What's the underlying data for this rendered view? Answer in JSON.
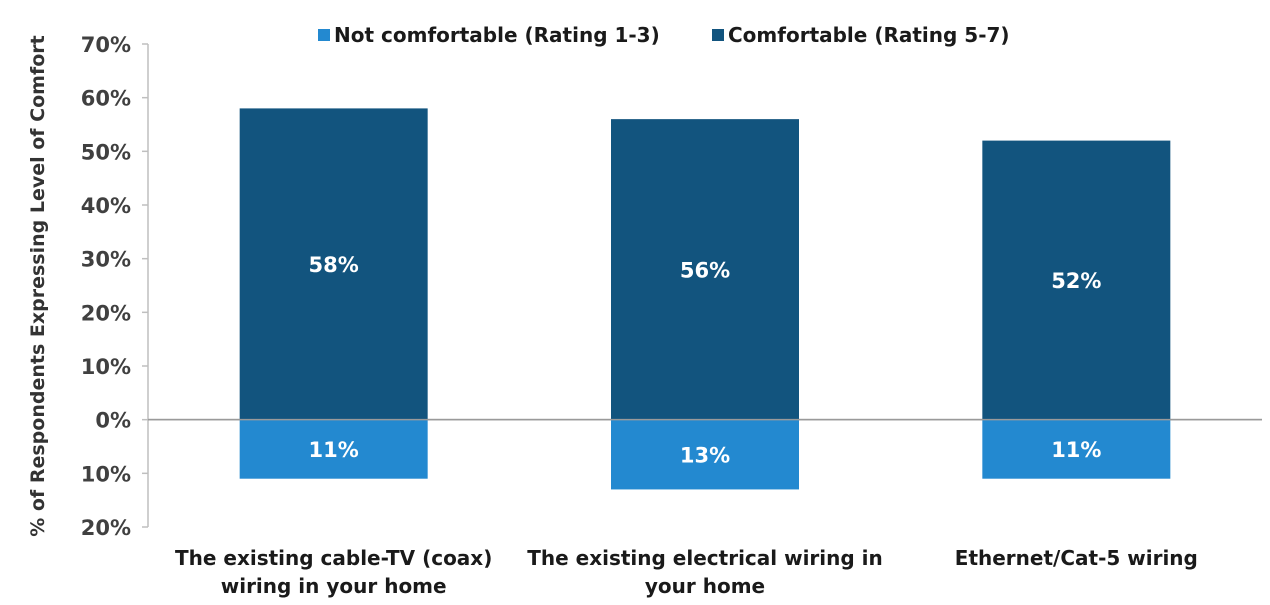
{
  "chart_data": {
    "type": "bar",
    "stacking": "diverging",
    "categories": [
      [
        "The existing cable-TV (coax)",
        "wiring in your home"
      ],
      [
        "The existing electrical wiring in",
        "your home"
      ],
      [
        "Ethernet/Cat-5 wiring"
      ]
    ],
    "series": [
      {
        "name": "Not comfortable (Rating 1-3)",
        "values": [
          11,
          13,
          11
        ],
        "labels": [
          "11%",
          "13%",
          "11%"
        ],
        "color": "#2389d0",
        "direction": "down"
      },
      {
        "name": "Comfortable (Rating 5-7)",
        "values": [
          58,
          56,
          52
        ],
        "labels": [
          "58%",
          "56%",
          "52%"
        ],
        "color": "#12547e",
        "direction": "up"
      }
    ],
    "ylabel": "% of Respondents Expressing Level of Comfort",
    "ylim": [
      -20,
      70
    ],
    "y_ticks": [
      70,
      60,
      50,
      40,
      30,
      20,
      10,
      0,
      -10,
      -20
    ],
    "y_tick_labels": [
      "70%",
      "60%",
      "50%",
      "40%",
      "30%",
      "20%",
      "10%",
      "0%",
      "10%",
      "20%"
    ],
    "legend_position": "top",
    "grid": false
  }
}
